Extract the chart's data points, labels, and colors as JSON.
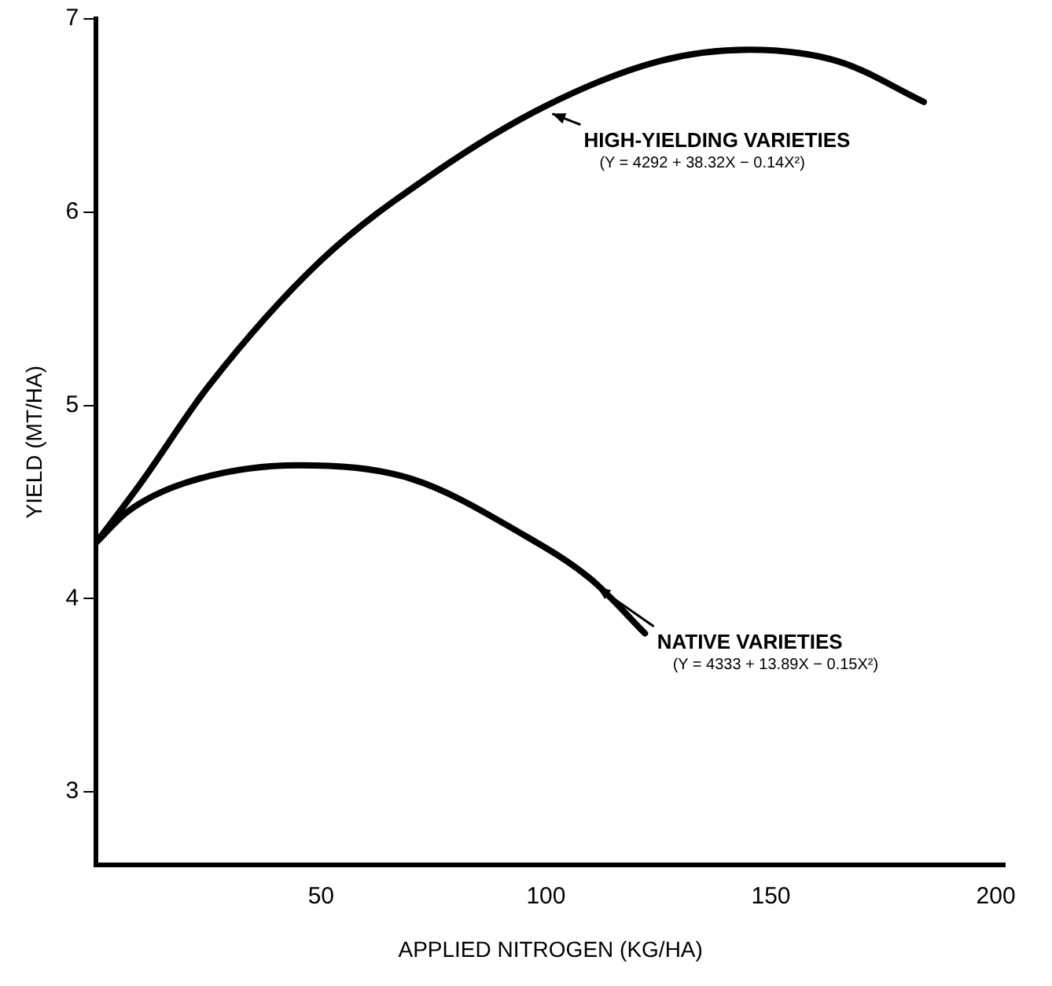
{
  "chart_data": {
    "type": "line",
    "xlabel": "APPLIED NITROGEN (KG/HA)",
    "ylabel": "YIELD (MT/HA)",
    "xlim": [
      0,
      202
    ],
    "xticks": [
      50,
      100,
      150,
      200
    ],
    "ylim": [
      2.62,
      7
    ],
    "yticks": [
      3,
      4,
      5,
      6,
      7
    ],
    "grid": false,
    "marker": "none",
    "line_style": "solid",
    "series": [
      {
        "name": "HIGH-YIELDING VARIETIES",
        "color": "#000000",
        "x": [
          0,
          10,
          25,
          50,
          75,
          100,
          125,
          145,
          165,
          184
        ],
        "values": [
          4.29,
          4.6,
          5.1,
          5.75,
          6.2,
          6.55,
          6.78,
          6.84,
          6.78,
          6.57
        ]
      },
      {
        "name": "NATIVE VARIETIES",
        "color": "#000000",
        "x": [
          0,
          7,
          20,
          45,
          70,
          95,
          110,
          122
        ],
        "values": [
          4.29,
          4.45,
          4.6,
          4.69,
          4.62,
          4.33,
          4.1,
          3.82
        ]
      }
    ],
    "annotations": [
      "(Y = 4292 + 38.32X − 0.14X²)",
      "(Y = 4333 + 13.89X − 0.15X²)"
    ]
  }
}
